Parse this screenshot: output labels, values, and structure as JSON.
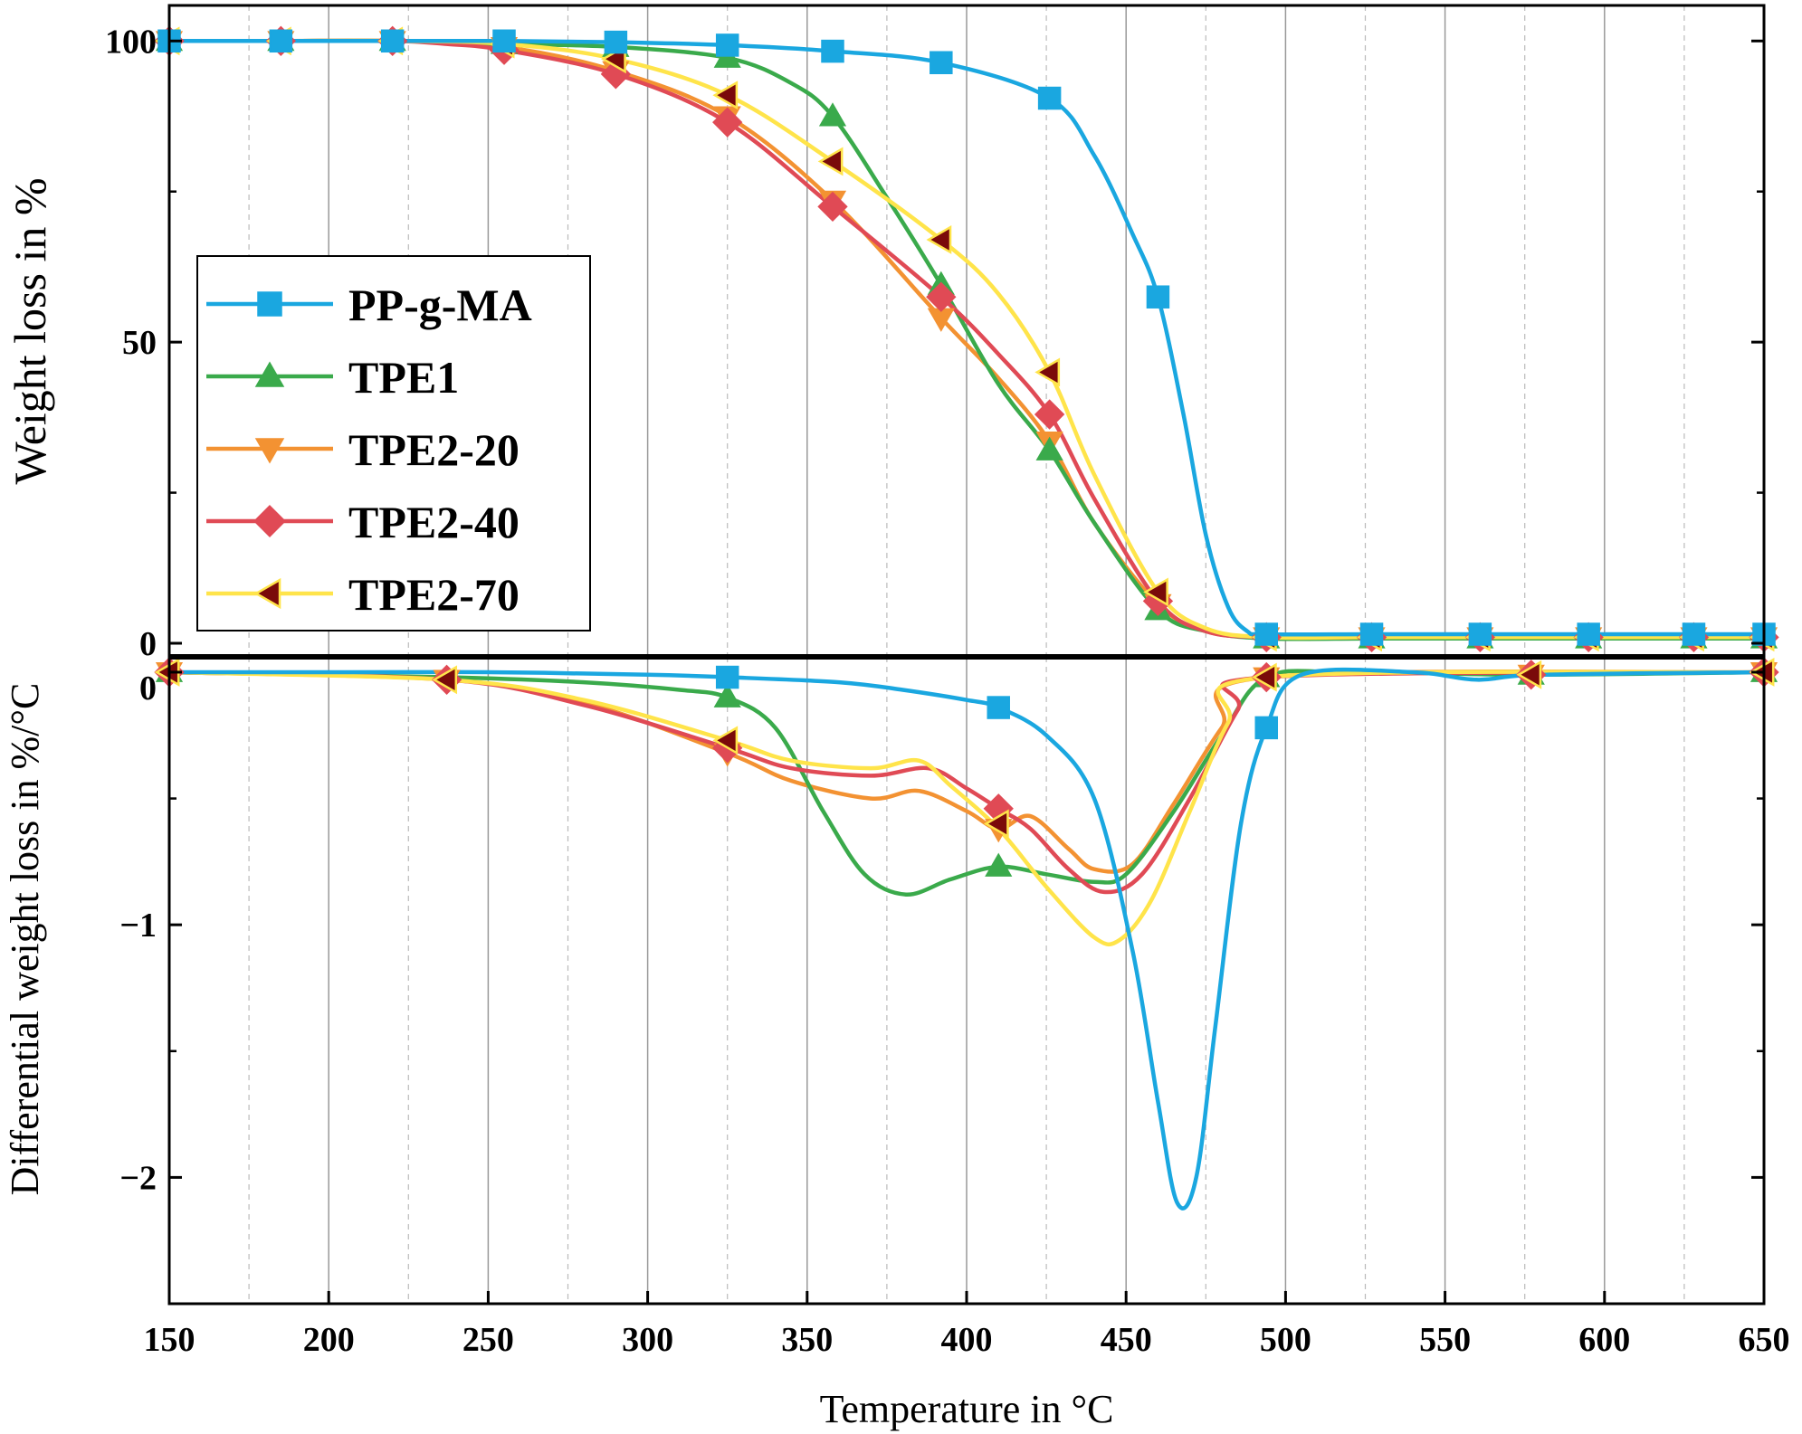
{
  "chart_data": [
    {
      "type": "line",
      "panel": "top",
      "ylabel": "Weight loss in %",
      "xlim": [
        150,
        650
      ],
      "ylim": [
        0,
        105
      ],
      "yticks": [
        0,
        50,
        100
      ],
      "ytick_labels": [
        "0",
        "50",
        "100"
      ],
      "grid": "vertical",
      "legend_position": "left-center",
      "series": [
        {
          "name": "PP-g-MA",
          "color": "#1aa7e0",
          "marker": "square",
          "x": [
            150,
            185,
            220,
            255,
            290,
            325,
            358,
            392,
            426,
            440,
            452,
            460,
            468,
            475,
            482,
            488,
            494,
            527,
            561,
            595,
            628,
            650
          ],
          "y": [
            100,
            100,
            100,
            100,
            99.8,
            99.3,
            98.3,
            96.4,
            90.5,
            81,
            68,
            57.5,
            38,
            18,
            6,
            2,
            1.5,
            1.5,
            1.5,
            1.5,
            1.5,
            1.5
          ],
          "markers": [
            [
              150,
              100
            ],
            [
              185,
              100
            ],
            [
              220,
              100
            ],
            [
              255,
              100
            ],
            [
              290,
              99.8
            ],
            [
              325,
              99.3
            ],
            [
              358,
              98.3
            ],
            [
              392,
              96.4
            ],
            [
              426,
              90.5
            ],
            [
              460,
              57.5
            ],
            [
              494,
              1.5
            ],
            [
              527,
              1.5
            ],
            [
              561,
              1.5
            ],
            [
              595,
              1.5
            ],
            [
              628,
              1.5
            ],
            [
              650,
              1.5
            ]
          ]
        },
        {
          "name": "TPE1",
          "color": "#3aaa4b",
          "marker": "triangle-up",
          "x": [
            150,
            185,
            220,
            255,
            290,
            325,
            345,
            358,
            375,
            392,
            410,
            426,
            440,
            460,
            475,
            494,
            527,
            561,
            595,
            628,
            650
          ],
          "y": [
            100,
            100,
            100,
            99.5,
            99,
            97.2,
            93,
            87.5,
            74,
            59.5,
            43,
            32,
            20,
            5.5,
            2,
            0.8,
            0.8,
            0.8,
            0.8,
            0.8,
            0.8
          ],
          "markers": [
            [
              150,
              100
            ],
            [
              185,
              100
            ],
            [
              220,
              100
            ],
            [
              255,
              99.5
            ],
            [
              290,
              99
            ],
            [
              325,
              97.2
            ],
            [
              358,
              87.5
            ],
            [
              392,
              59.5
            ],
            [
              426,
              32
            ],
            [
              460,
              5.5
            ],
            [
              494,
              0.8
            ],
            [
              527,
              0.8
            ],
            [
              561,
              0.8
            ],
            [
              595,
              0.8
            ],
            [
              628,
              0.8
            ],
            [
              650,
              0.8
            ]
          ]
        },
        {
          "name": "TPE2-20",
          "color": "#f39232",
          "marker": "triangle-down",
          "x": [
            150,
            185,
            220,
            255,
            290,
            325,
            358,
            392,
            410,
            426,
            440,
            460,
            475,
            494,
            527,
            561,
            595,
            628,
            650
          ],
          "y": [
            100,
            100,
            100,
            99,
            95,
            87.5,
            73.5,
            54,
            44,
            33.5,
            20,
            6.5,
            2,
            1,
            1,
            1,
            1,
            1,
            1
          ],
          "markers": [
            [
              150,
              100
            ],
            [
              185,
              100
            ],
            [
              220,
              100
            ],
            [
              255,
              99
            ],
            [
              290,
              95
            ],
            [
              325,
              87.5
            ],
            [
              358,
              73.5
            ],
            [
              392,
              54
            ],
            [
              426,
              33.5
            ],
            [
              460,
              6.5
            ],
            [
              494,
              1
            ],
            [
              527,
              1
            ],
            [
              561,
              1
            ],
            [
              595,
              1
            ],
            [
              628,
              1
            ],
            [
              650,
              1
            ]
          ]
        },
        {
          "name": "TPE2-40",
          "color": "#e04a55",
          "marker": "diamond",
          "x": [
            150,
            185,
            220,
            237,
            255,
            290,
            325,
            358,
            392,
            410,
            426,
            440,
            460,
            475,
            494,
            527,
            561,
            595,
            628,
            650
          ],
          "y": [
            100,
            100,
            100,
            99.5,
            98.5,
            94.5,
            86.5,
            72.5,
            57.5,
            48,
            38,
            24,
            7,
            2,
            1,
            1,
            1,
            1,
            1,
            1
          ],
          "markers": [
            [
              150,
              100
            ],
            [
              185,
              100
            ],
            [
              220,
              100
            ],
            [
              255,
              98.5
            ],
            [
              290,
              94.5
            ],
            [
              325,
              86.5
            ],
            [
              358,
              72.5
            ],
            [
              392,
              57.5
            ],
            [
              426,
              38
            ],
            [
              460,
              7
            ],
            [
              494,
              1
            ],
            [
              527,
              1
            ],
            [
              561,
              1
            ],
            [
              595,
              1
            ],
            [
              628,
              1
            ],
            [
              650,
              1
            ]
          ]
        },
        {
          "name": "TPE2-70",
          "color": "#ffe44a",
          "edge": "#7a0a0a",
          "marker": "triangle-left",
          "marker_fill": "#7a0a0a",
          "x": [
            150,
            185,
            220,
            255,
            290,
            325,
            358,
            392,
            410,
            426,
            440,
            460,
            475,
            494,
            527,
            561,
            595,
            628,
            650
          ],
          "y": [
            100,
            100,
            100,
            99.5,
            97,
            91,
            80,
            67,
            58,
            45,
            28,
            8.5,
            2.5,
            1,
            1,
            1,
            1,
            1,
            1
          ],
          "markers": [
            [
              150,
              100
            ],
            [
              185,
              100
            ],
            [
              220,
              100
            ],
            [
              255,
              99.5
            ],
            [
              290,
              97
            ],
            [
              325,
              91
            ],
            [
              358,
              80
            ],
            [
              392,
              67
            ],
            [
              426,
              45
            ],
            [
              460,
              8.5
            ],
            [
              494,
              1
            ],
            [
              527,
              1
            ],
            [
              561,
              1
            ],
            [
              595,
              1
            ],
            [
              628,
              1
            ],
            [
              650,
              1
            ]
          ]
        }
      ]
    },
    {
      "type": "line",
      "panel": "bottom",
      "xlabel": "Temperature in °C",
      "ylabel": "Differential weight loss in %/°C",
      "xlim": [
        150,
        650
      ],
      "ylim": [
        -2.5,
        0.05
      ],
      "xticks": [
        150,
        200,
        250,
        300,
        350,
        400,
        450,
        500,
        550,
        600,
        650
      ],
      "xtick_labels": [
        "150",
        "200",
        "250",
        "300",
        "350",
        "400",
        "450",
        "500",
        "550",
        "600",
        "650"
      ],
      "yticks": [
        0,
        -1,
        -2
      ],
      "ytick_labels": [
        "0",
        "−1",
        "−2"
      ],
      "grid": "vertical",
      "series": [
        {
          "name": "PP-g-MA",
          "color": "#1aa7e0",
          "marker": "square",
          "x": [
            150,
            200,
            250,
            300,
            325,
            360,
            380,
            400,
            410,
            425,
            440,
            452,
            460,
            466,
            472,
            478,
            486,
            494,
            505,
            540,
            560,
            580,
            650
          ],
          "y": [
            0,
            0,
            0,
            -0.01,
            -0.02,
            -0.04,
            -0.07,
            -0.11,
            -0.14,
            -0.25,
            -0.5,
            -1.1,
            -1.7,
            -2.1,
            -2.0,
            -1.4,
            -0.6,
            -0.22,
            -0.01,
            0,
            -0.03,
            -0.01,
            0
          ],
          "markers": [
            [
              325,
              -0.02
            ],
            [
              410,
              -0.14
            ],
            [
              494,
              -0.22
            ]
          ]
        },
        {
          "name": "TPE1",
          "color": "#3aaa4b",
          "marker": "triangle-up",
          "x": [
            150,
            237,
            280,
            310,
            325,
            340,
            355,
            368,
            381,
            395,
            410,
            425,
            440,
            450,
            465,
            480,
            494,
            520,
            577,
            650
          ],
          "y": [
            0,
            -0.02,
            -0.04,
            -0.07,
            -0.1,
            -0.22,
            -0.55,
            -0.8,
            -0.88,
            -0.82,
            -0.77,
            -0.8,
            -0.83,
            -0.8,
            -0.55,
            -0.25,
            -0.02,
            0,
            -0.01,
            0
          ],
          "markers": [
            [
              150,
              0
            ],
            [
              325,
              -0.1
            ],
            [
              410,
              -0.77
            ],
            [
              494,
              -0.02
            ],
            [
              577,
              -0.01
            ],
            [
              650,
              0
            ]
          ]
        },
        {
          "name": "TPE2-20",
          "color": "#f39232",
          "marker": "triangle-down",
          "x": [
            150,
            237,
            280,
            325,
            345,
            370,
            385,
            400,
            410,
            420,
            432,
            440,
            452,
            465,
            480,
            494,
            650
          ],
          "y": [
            0,
            -0.03,
            -0.12,
            -0.32,
            -0.43,
            -0.5,
            -0.47,
            -0.55,
            -0.62,
            -0.57,
            -0.7,
            -0.78,
            -0.76,
            -0.52,
            -0.22,
            -0.02,
            0
          ],
          "markers": [
            [
              150,
              0
            ],
            [
              237,
              -0.03
            ],
            [
              325,
              -0.32
            ],
            [
              410,
              -0.62
            ],
            [
              494,
              -0.02
            ],
            [
              577,
              -0.01
            ],
            [
              650,
              0
            ]
          ]
        },
        {
          "name": "TPE2-40",
          "color": "#e04a55",
          "marker": "diamond",
          "x": [
            150,
            237,
            280,
            325,
            345,
            370,
            388,
            400,
            410,
            420,
            432,
            443,
            455,
            470,
            485,
            494,
            650
          ],
          "y": [
            0,
            -0.03,
            -0.13,
            -0.3,
            -0.38,
            -0.41,
            -0.38,
            -0.46,
            -0.54,
            -0.62,
            -0.78,
            -0.87,
            -0.8,
            -0.5,
            -0.15,
            -0.02,
            0
          ],
          "markers": [
            [
              150,
              0
            ],
            [
              237,
              -0.03
            ],
            [
              325,
              -0.3
            ],
            [
              410,
              -0.54
            ],
            [
              494,
              -0.02
            ],
            [
              577,
              -0.01
            ],
            [
              650,
              0
            ]
          ]
        },
        {
          "name": "TPE2-70",
          "color": "#ffe44a",
          "marker": "triangle-left",
          "marker_fill": "#7a0a0a",
          "x": [
            150,
            237,
            280,
            325,
            345,
            370,
            385,
            395,
            410,
            425,
            440,
            448,
            458,
            470,
            482,
            494,
            650
          ],
          "y": [
            0,
            -0.03,
            -0.11,
            -0.27,
            -0.35,
            -0.38,
            -0.35,
            -0.45,
            -0.62,
            -0.85,
            -1.05,
            -1.06,
            -0.9,
            -0.55,
            -0.2,
            -0.02,
            0
          ],
          "markers": [
            [
              150,
              0
            ],
            [
              237,
              -0.03
            ],
            [
              325,
              -0.27
            ],
            [
              410,
              -0.6
            ],
            [
              494,
              -0.02
            ],
            [
              577,
              -0.01
            ],
            [
              650,
              0
            ]
          ]
        }
      ]
    }
  ]
}
